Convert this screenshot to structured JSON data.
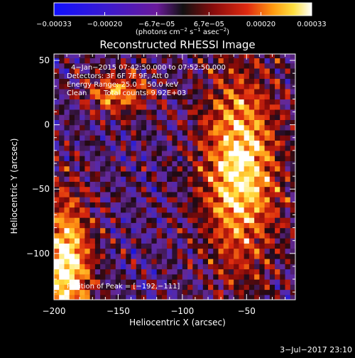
{
  "chart_data": {
    "type": "heatmap",
    "title": "Reconstructed RHESSI Image",
    "xlabel": "Heliocentric X (arcsec)",
    "ylabel": "Heliocentric Y (arcsec)",
    "xlim": [
      -200,
      -12
    ],
    "ylim": [
      -136,
      55
    ],
    "xticks": [
      -200,
      -150,
      -100,
      -50
    ],
    "xtick_labels": [
      "−200",
      "−150",
      "−100",
      "−50"
    ],
    "yticks": [
      -100,
      -50,
      0,
      50
    ],
    "ytick_labels": [
      "−100",
      "−50",
      "0",
      "50"
    ],
    "colorbar": {
      "colormap": "blue-purple-red-yellow-white",
      "range": [
        -0.00033,
        0.00033
      ],
      "ticks": [
        -0.00033,
        -0.0002,
        -6.7e-05,
        6.7e-05,
        0.0002,
        0.00033
      ],
      "tick_labels": [
        "−0.00033",
        "−0.00020",
        "−6.7e−05",
        "6.7e−05",
        "0.00020",
        "0.00033"
      ],
      "unit_prefix": "(photons cm",
      "unit_sup1": "−2",
      "unit_mid": " s",
      "unit_sup2": "−1",
      "unit_mid2": " asec",
      "unit_sup3": "−2",
      "unit_suffix": ")"
    },
    "annotations": [
      "4−Jan−2015 07:42:50.000 to 07:52:50.000",
      "Detectors: 3F 6F 7F 9F, Att 0",
      "Energy Range: 25.0 − 50.0 keV",
      "Clean",
      "Total counts: 9.92E+03"
    ],
    "peak_label": "Position of Peak = [−192,−111]",
    "peak": {
      "x": -192,
      "y": -111
    },
    "sources": [
      {
        "x": -190,
        "y": -110,
        "intensity": 1.0,
        "sx": 14,
        "sy": 40
      },
      {
        "x": -55,
        "y": -35,
        "intensity": 0.95,
        "sx": 22,
        "sy": 55
      },
      {
        "x": -150,
        "y": 25,
        "intensity": 0.7,
        "sx": 18,
        "sy": 12
      }
    ]
  },
  "footer": {
    "date": "3−Jul−2017 23:10"
  }
}
